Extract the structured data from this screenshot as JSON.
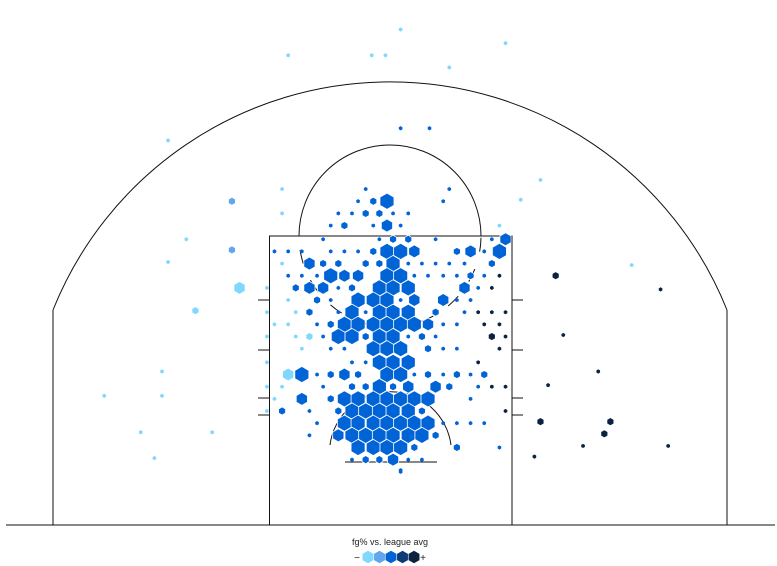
{
  "chart_data": {
    "type": "heatmap",
    "title": "",
    "legend": {
      "title": "fg% vs. league avg",
      "low_label": "−",
      "high_label": "+",
      "placement": "bottom-center"
    },
    "level_colors": {
      "1": "#80d8ff",
      "2": "#62a6ee",
      "3": "#0063d6",
      "4": "#0d3b78",
      "5": "#0b2240"
    },
    "bin_fields": [
      "x_ft_from_center",
      "y_ft_from_baseline",
      "relative_frequency",
      "fg_vs_avg_level"
    ],
    "bins": [
      [
        0.7,
        32.6,
        0.25,
        1
      ],
      [
        7.6,
        31.7,
        0.25,
        1
      ],
      [
        -6.7,
        30.9,
        0.25,
        1
      ],
      [
        -1.2,
        30.9,
        0.25,
        1
      ],
      [
        -0.3,
        30.9,
        0.25,
        1
      ],
      [
        3.9,
        30.1,
        0.25,
        1
      ],
      [
        0.7,
        26.1,
        0.25,
        3
      ],
      [
        2.6,
        26.1,
        0.25,
        3
      ],
      [
        -14.6,
        25.3,
        0.25,
        1
      ],
      [
        -10.4,
        21.3,
        0.5,
        2
      ],
      [
        -10.4,
        18.1,
        0.5,
        2
      ],
      [
        -9.9,
        15.6,
        0.8,
        1
      ],
      [
        -12.8,
        14.1,
        0.5,
        1
      ],
      [
        10.9,
        16.4,
        0.5,
        5
      ],
      [
        9.9,
        6.8,
        0.5,
        5
      ],
      [
        14.5,
        6.8,
        0.5,
        5
      ],
      [
        14.1,
        6.0,
        0.5,
        5
      ],
      [
        15.9,
        17.1,
        0.25,
        1
      ],
      [
        8.6,
        21.4,
        0.25,
        1
      ],
      [
        9.9,
        22.7,
        0.25,
        1
      ],
      [
        17.8,
        15.5,
        0.25,
        5
      ],
      [
        11.4,
        12.5,
        0.25,
        5
      ],
      [
        13.7,
        10.1,
        0.25,
        5
      ],
      [
        10.4,
        9.2,
        0.25,
        5
      ],
      [
        18.3,
        5.2,
        0.25,
        5
      ],
      [
        12.7,
        5.2,
        0.25,
        5
      ],
      [
        9.5,
        4.5,
        0.25,
        5
      ],
      [
        -15.0,
        10.1,
        0.25,
        1
      ],
      [
        -18.8,
        8.5,
        0.25,
        1
      ],
      [
        -16.4,
        6.1,
        0.25,
        1
      ],
      [
        -15.5,
        4.4,
        0.25,
        1
      ],
      [
        -11.7,
        6.1,
        0.25,
        1
      ],
      [
        -15.0,
        8.5,
        0.25,
        1
      ],
      [
        -13.4,
        18.8,
        0.25,
        1
      ],
      [
        -14.6,
        17.3,
        0.25,
        1
      ],
      [
        0.7,
        3.6,
        0.25,
        3
      ],
      [
        -7.1,
        22.1,
        0.25,
        1
      ],
      [
        -1.6,
        22.1,
        0.25,
        3
      ],
      [
        3.9,
        22.1,
        0.25,
        3
      ],
      [
        -2.1,
        21.3,
        0.25,
        3
      ],
      [
        -1.1,
        21.3,
        0.5,
        3
      ],
      [
        -0.2,
        21.3,
        1,
        3
      ],
      [
        3.5,
        21.3,
        0.25,
        3
      ],
      [
        -7.1,
        20.5,
        0.25,
        1
      ],
      [
        -3.4,
        20.5,
        0.25,
        3
      ],
      [
        -2.5,
        20.5,
        0.25,
        3
      ],
      [
        -1.6,
        20.5,
        0.5,
        3
      ],
      [
        -0.7,
        20.5,
        0.5,
        3
      ],
      [
        0.2,
        20.5,
        0.25,
        3
      ],
      [
        1.2,
        20.5,
        0.25,
        3
      ],
      [
        -3.9,
        19.7,
        0.25,
        3
      ],
      [
        -3.0,
        19.7,
        0.5,
        3
      ],
      [
        -1.1,
        19.7,
        0.25,
        3
      ],
      [
        -0.2,
        19.7,
        0.8,
        3
      ],
      [
        0.7,
        19.7,
        0.25,
        3
      ],
      [
        7.2,
        19.7,
        0.25,
        1
      ],
      [
        -4.4,
        18.8,
        0.25,
        3
      ],
      [
        -0.7,
        18.8,
        0.25,
        3
      ],
      [
        0.2,
        18.8,
        0.5,
        3
      ],
      [
        1.2,
        18.8,
        0.5,
        3
      ],
      [
        3.0,
        18.8,
        0.25,
        3
      ],
      [
        6.7,
        18.8,
        0.25,
        3
      ],
      [
        7.6,
        18.8,
        0.8,
        3
      ],
      [
        -7.6,
        18.0,
        0.25,
        3
      ],
      [
        -6.7,
        18.0,
        0.25,
        3
      ],
      [
        -5.8,
        18.0,
        0.25,
        3
      ],
      [
        -3.9,
        18.0,
        0.25,
        3
      ],
      [
        -3.0,
        18.0,
        0.25,
        3
      ],
      [
        -2.1,
        18.0,
        0.25,
        3
      ],
      [
        -1.1,
        18.0,
        0.5,
        3
      ],
      [
        -0.2,
        18.0,
        1,
        3
      ],
      [
        0.7,
        18.0,
        1,
        3
      ],
      [
        1.6,
        18.0,
        0.8,
        3
      ],
      [
        4.4,
        18.0,
        0.5,
        3
      ],
      [
        5.3,
        18.0,
        0.8,
        3
      ],
      [
        6.2,
        18.0,
        0.25,
        3
      ],
      [
        7.2,
        18.0,
        1,
        3
      ],
      [
        -7.1,
        17.2,
        0.25,
        1
      ],
      [
        -5.3,
        17.2,
        0.8,
        3
      ],
      [
        -4.4,
        17.2,
        0.5,
        3
      ],
      [
        -3.4,
        17.2,
        0.5,
        3
      ],
      [
        -1.6,
        17.2,
        0.5,
        3
      ],
      [
        -0.7,
        17.2,
        0.5,
        3
      ],
      [
        0.2,
        17.2,
        1,
        3
      ],
      [
        1.2,
        17.2,
        0.25,
        3
      ],
      [
        2.1,
        17.2,
        0.25,
        3
      ],
      [
        3.0,
        17.2,
        0.25,
        3
      ],
      [
        3.9,
        17.2,
        0.25,
        3
      ],
      [
        4.9,
        17.2,
        0.25,
        3
      ],
      [
        6.7,
        17.2,
        0.5,
        3
      ],
      [
        -6.7,
        16.4,
        0.25,
        3
      ],
      [
        -5.8,
        16.4,
        0.25,
        3
      ],
      [
        -4.8,
        16.4,
        0.25,
        3
      ],
      [
        -3.9,
        16.4,
        1,
        3
      ],
      [
        -3.0,
        16.4,
        0.8,
        3
      ],
      [
        -2.1,
        16.4,
        0.8,
        3
      ],
      [
        -0.2,
        16.4,
        1,
        3
      ],
      [
        0.7,
        16.4,
        1,
        3
      ],
      [
        1.6,
        16.4,
        0.25,
        3
      ],
      [
        2.5,
        16.4,
        0.25,
        3
      ],
      [
        3.5,
        16.4,
        0.25,
        3
      ],
      [
        4.4,
        16.4,
        0.25,
        3
      ],
      [
        5.3,
        16.4,
        0.5,
        3
      ],
      [
        6.2,
        16.4,
        0.25,
        3
      ],
      [
        7.2,
        16.4,
        0.25,
        5
      ],
      [
        -8.1,
        15.6,
        0.25,
        1
      ],
      [
        -6.2,
        15.6,
        0.5,
        3
      ],
      [
        -5.3,
        15.6,
        0.8,
        3
      ],
      [
        -4.4,
        15.6,
        0.8,
        3
      ],
      [
        -3.4,
        15.6,
        0.25,
        3
      ],
      [
        -2.5,
        15.6,
        0.5,
        3
      ],
      [
        -0.7,
        15.6,
        1,
        3
      ],
      [
        0.2,
        15.6,
        1,
        3
      ],
      [
        1.2,
        15.6,
        1,
        3
      ],
      [
        4.9,
        15.6,
        0.8,
        3
      ],
      [
        5.8,
        15.6,
        0.25,
        3
      ],
      [
        6.7,
        15.6,
        0.25,
        5
      ],
      [
        -6.7,
        14.8,
        0.25,
        1
      ],
      [
        -4.8,
        14.8,
        0.5,
        3
      ],
      [
        -3.9,
        14.8,
        0.25,
        3
      ],
      [
        -2.1,
        14.8,
        1,
        3
      ],
      [
        -1.1,
        14.8,
        1,
        3
      ],
      [
        -0.2,
        14.8,
        1,
        3
      ],
      [
        0.7,
        14.8,
        0.25,
        3
      ],
      [
        1.6,
        14.8,
        0.8,
        3
      ],
      [
        3.5,
        14.8,
        0.8,
        3
      ],
      [
        4.4,
        14.8,
        0.25,
        3
      ],
      [
        5.3,
        14.8,
        0.25,
        3
      ],
      [
        -8.1,
        14.0,
        0.25,
        1
      ],
      [
        -6.2,
        14.0,
        0.25,
        1
      ],
      [
        -5.3,
        14.0,
        0.5,
        3
      ],
      [
        -3.4,
        14.0,
        0.25,
        3
      ],
      [
        -2.5,
        14.0,
        1,
        3
      ],
      [
        -1.6,
        14.0,
        0.25,
        3
      ],
      [
        -0.7,
        14.0,
        1,
        3
      ],
      [
        0.2,
        14.0,
        1,
        3
      ],
      [
        1.2,
        14.0,
        1,
        3
      ],
      [
        3.0,
        14.0,
        0.5,
        3
      ],
      [
        4.9,
        14.0,
        0.25,
        3
      ],
      [
        5.8,
        14.0,
        0.25,
        5
      ],
      [
        6.7,
        14.0,
        0.25,
        5
      ],
      [
        7.6,
        14.0,
        0.25,
        5
      ],
      [
        -7.6,
        13.2,
        0.25,
        1
      ],
      [
        -6.7,
        13.2,
        0.25,
        1
      ],
      [
        -4.8,
        13.2,
        0.25,
        3
      ],
      [
        -3.9,
        13.2,
        0.5,
        3
      ],
      [
        -3.0,
        13.2,
        1,
        3
      ],
      [
        -2.1,
        13.2,
        1,
        3
      ],
      [
        -1.1,
        13.2,
        1,
        3
      ],
      [
        -0.2,
        13.2,
        1,
        3
      ],
      [
        0.7,
        13.2,
        1,
        3
      ],
      [
        1.6,
        13.2,
        1,
        3
      ],
      [
        2.5,
        13.2,
        0.8,
        3
      ],
      [
        3.5,
        13.2,
        0.25,
        3
      ],
      [
        4.4,
        13.2,
        0.25,
        3
      ],
      [
        6.2,
        13.2,
        0.25,
        5
      ],
      [
        7.2,
        13.2,
        0.25,
        5
      ],
      [
        -8.1,
        12.4,
        0.25,
        1
      ],
      [
        -6.2,
        12.4,
        0.25,
        1
      ],
      [
        -5.3,
        12.4,
        0.5,
        1
      ],
      [
        -4.4,
        12.4,
        0.25,
        3
      ],
      [
        -3.4,
        12.4,
        1,
        3
      ],
      [
        -2.5,
        12.4,
        1,
        3
      ],
      [
        -1.6,
        12.4,
        0.5,
        3
      ],
      [
        -0.7,
        12.4,
        1,
        3
      ],
      [
        0.2,
        12.4,
        1,
        3
      ],
      [
        1.2,
        12.4,
        0.25,
        3
      ],
      [
        2.1,
        12.4,
        0.5,
        3
      ],
      [
        3.0,
        12.4,
        0.25,
        3
      ],
      [
        6.7,
        12.4,
        0.5,
        5
      ],
      [
        7.6,
        12.4,
        0.25,
        5
      ],
      [
        -5.8,
        11.6,
        0.25,
        1
      ],
      [
        -3.9,
        11.6,
        0.25,
        3
      ],
      [
        -3.0,
        11.6,
        0.25,
        3
      ],
      [
        -1.1,
        11.6,
        1,
        3
      ],
      [
        -0.2,
        11.6,
        1,
        3
      ],
      [
        0.7,
        11.6,
        1,
        3
      ],
      [
        2.5,
        11.6,
        0.5,
        3
      ],
      [
        3.5,
        11.6,
        0.25,
        3
      ],
      [
        4.4,
        11.6,
        0.25,
        3
      ],
      [
        7.2,
        11.6,
        0.25,
        5
      ],
      [
        -8.1,
        10.7,
        0.25,
        1
      ],
      [
        -2.5,
        10.7,
        0.25,
        3
      ],
      [
        -1.6,
        10.7,
        0.25,
        3
      ],
      [
        -0.7,
        10.7,
        1,
        3
      ],
      [
        0.2,
        10.7,
        1,
        3
      ],
      [
        1.2,
        10.7,
        1,
        3
      ],
      [
        5.8,
        10.7,
        0.25,
        5
      ],
      [
        -6.7,
        9.9,
        0.8,
        1
      ],
      [
        -5.8,
        9.9,
        1,
        3
      ],
      [
        -4.8,
        9.9,
        0.25,
        3
      ],
      [
        -3.9,
        9.9,
        0.5,
        3
      ],
      [
        -3.0,
        9.9,
        0.8,
        3
      ],
      [
        -2.1,
        9.9,
        0.5,
        3
      ],
      [
        -0.2,
        9.9,
        1,
        3
      ],
      [
        0.7,
        9.9,
        1,
        3
      ],
      [
        1.6,
        9.9,
        0.25,
        3
      ],
      [
        2.5,
        9.9,
        0.5,
        3
      ],
      [
        3.5,
        9.9,
        0.25,
        3
      ],
      [
        4.4,
        9.9,
        0.5,
        3
      ],
      [
        5.3,
        9.9,
        0.25,
        3
      ],
      [
        6.2,
        9.9,
        0.5,
        3
      ],
      [
        -8.1,
        9.1,
        0.25,
        1
      ],
      [
        -7.1,
        9.1,
        0.25,
        1
      ],
      [
        -4.4,
        9.1,
        0.25,
        3
      ],
      [
        -2.5,
        9.1,
        0.5,
        3
      ],
      [
        -1.6,
        9.1,
        0.5,
        3
      ],
      [
        -0.7,
        9.1,
        1,
        3
      ],
      [
        0.2,
        9.1,
        0.5,
        3
      ],
      [
        1.2,
        9.1,
        0.8,
        3
      ],
      [
        3.0,
        9.1,
        0.8,
        3
      ],
      [
        3.9,
        9.1,
        0.5,
        3
      ],
      [
        5.8,
        9.1,
        0.25,
        3
      ],
      [
        6.7,
        9.1,
        0.25,
        5
      ],
      [
        7.6,
        9.1,
        0.25,
        5
      ],
      [
        -7.6,
        8.3,
        0.25,
        1
      ],
      [
        -5.8,
        8.3,
        0.8,
        3
      ],
      [
        -3.9,
        8.3,
        0.5,
        3
      ],
      [
        -3.0,
        8.3,
        1,
        3
      ],
      [
        -2.1,
        8.3,
        1,
        3
      ],
      [
        -1.1,
        8.3,
        1,
        3
      ],
      [
        -0.2,
        8.3,
        1,
        3
      ],
      [
        0.7,
        8.3,
        1,
        3
      ],
      [
        1.6,
        8.3,
        1,
        3
      ],
      [
        2.5,
        8.3,
        1,
        3
      ],
      [
        5.3,
        8.3,
        0.25,
        3
      ],
      [
        -8.1,
        7.5,
        0.25,
        1
      ],
      [
        -7.1,
        7.5,
        0.5,
        3
      ],
      [
        -5.3,
        7.5,
        0.25,
        3
      ],
      [
        -3.4,
        7.5,
        0.5,
        3
      ],
      [
        -2.5,
        7.5,
        1,
        3
      ],
      [
        -1.6,
        7.5,
        1,
        3
      ],
      [
        -0.7,
        7.5,
        1,
        3
      ],
      [
        0.2,
        7.5,
        1,
        3
      ],
      [
        1.2,
        7.5,
        1,
        3
      ],
      [
        2.1,
        7.5,
        0.5,
        3
      ],
      [
        7.6,
        7.5,
        0.25,
        5
      ],
      [
        -4.8,
        6.7,
        0.25,
        3
      ],
      [
        -3.0,
        6.7,
        1,
        3
      ],
      [
        -2.1,
        6.7,
        1,
        3
      ],
      [
        -1.1,
        6.7,
        1,
        3
      ],
      [
        -0.2,
        6.7,
        1,
        3
      ],
      [
        0.7,
        6.7,
        1,
        3
      ],
      [
        1.6,
        6.7,
        1,
        3
      ],
      [
        2.5,
        6.7,
        1,
        3
      ],
      [
        3.5,
        6.7,
        0.25,
        3
      ],
      [
        4.4,
        6.7,
        0.25,
        3
      ],
      [
        5.3,
        6.7,
        0.25,
        3
      ],
      [
        6.2,
        6.7,
        0.25,
        3
      ],
      [
        -5.3,
        5.9,
        0.25,
        3
      ],
      [
        -3.4,
        5.9,
        0.8,
        3
      ],
      [
        -2.5,
        5.9,
        1,
        3
      ],
      [
        -1.6,
        5.9,
        1,
        3
      ],
      [
        -0.7,
        5.9,
        1,
        3
      ],
      [
        0.2,
        5.9,
        1,
        3
      ],
      [
        1.2,
        5.9,
        1,
        3
      ],
      [
        2.1,
        5.9,
        1,
        3
      ],
      [
        3.0,
        5.9,
        0.5,
        3
      ],
      [
        -2.1,
        5.1,
        1,
        3
      ],
      [
        -1.1,
        5.1,
        1,
        3
      ],
      [
        -0.2,
        5.1,
        1,
        3
      ],
      [
        0.7,
        5.1,
        1,
        3
      ],
      [
        1.6,
        5.1,
        0.5,
        3
      ],
      [
        4.4,
        5.1,
        0.5,
        3
      ],
      [
        7.2,
        5.1,
        0.25,
        3
      ],
      [
        -2.5,
        4.3,
        0.25,
        3
      ],
      [
        -1.6,
        4.3,
        0.5,
        3
      ],
      [
        -0.7,
        4.3,
        0.5,
        3
      ],
      [
        0.2,
        4.3,
        0.8,
        3
      ],
      [
        1.2,
        4.3,
        0.25,
        3
      ],
      [
        2.1,
        4.3,
        0.25,
        3
      ],
      [
        0.7,
        3.5,
        0.25,
        3
      ]
    ]
  }
}
